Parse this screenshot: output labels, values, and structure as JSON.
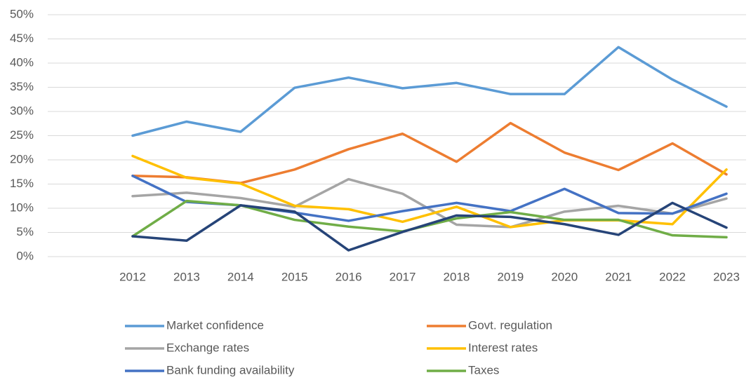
{
  "chart_data": {
    "type": "line",
    "categories": [
      "2012",
      "2013",
      "2014",
      "2015",
      "2016",
      "2017",
      "2018",
      "2019",
      "2020",
      "2021",
      "2022",
      "2023"
    ],
    "series": [
      {
        "name": "Market confidence",
        "color": "#5b9bd5",
        "values": [
          25,
          27.9,
          25.8,
          34.9,
          37,
          34.8,
          35.9,
          33.6,
          33.6,
          43.3,
          36.6,
          31
        ]
      },
      {
        "name": "Govt. regulation",
        "color": "#ed7d31",
        "values": [
          16.7,
          16.4,
          15.2,
          18,
          22.2,
          25.4,
          19.6,
          27.6,
          21.5,
          17.9,
          23.4,
          17
        ]
      },
      {
        "name": "Exchange rates",
        "color": "#a5a5a5",
        "values": [
          12.5,
          13.2,
          12.1,
          10.3,
          16,
          13,
          6.6,
          6.1,
          9.3,
          10.5,
          8.9,
          12
        ]
      },
      {
        "name": "Interest rates",
        "color": "#ffc000",
        "values": [
          20.8,
          16.3,
          15.1,
          10.5,
          9.8,
          7.2,
          10.3,
          6.1,
          7.5,
          7.5,
          6.7,
          18
        ]
      },
      {
        "name": "Bank funding availability",
        "color": "#4472c4",
        "values": [
          16.7,
          11.3,
          10.6,
          9.1,
          7.4,
          9.4,
          11.1,
          9.4,
          14,
          9,
          8.9,
          13
        ]
      },
      {
        "name": "Taxes",
        "color": "#70ad47",
        "values": [
          4.2,
          11.5,
          10.6,
          7.6,
          6.2,
          5.2,
          7.9,
          9.2,
          7.6,
          7.6,
          4.4,
          4
        ]
      },
      {
        "color": "#264478",
        "values": [
          4.2,
          3.3,
          10.6,
          9.3,
          1.3,
          5.1,
          8.5,
          8.2,
          6.7,
          4.5,
          11.1,
          6
        ]
      }
    ],
    "ylim": [
      0,
      50
    ],
    "yticks": [
      {
        "value": 0,
        "label": "0%"
      },
      {
        "value": 5,
        "label": "5%"
      },
      {
        "value": 10,
        "label": "10%"
      },
      {
        "value": 15,
        "label": "15%"
      },
      {
        "value": 20,
        "label": "20%"
      },
      {
        "value": 25,
        "label": "25%"
      },
      {
        "value": 30,
        "label": "30%"
      },
      {
        "value": 35,
        "label": "35%"
      },
      {
        "value": 40,
        "label": "40%"
      },
      {
        "value": 45,
        "label": "45%"
      },
      {
        "value": 50,
        "label": "50%"
      }
    ],
    "grid": true,
    "legend": "bottom"
  }
}
